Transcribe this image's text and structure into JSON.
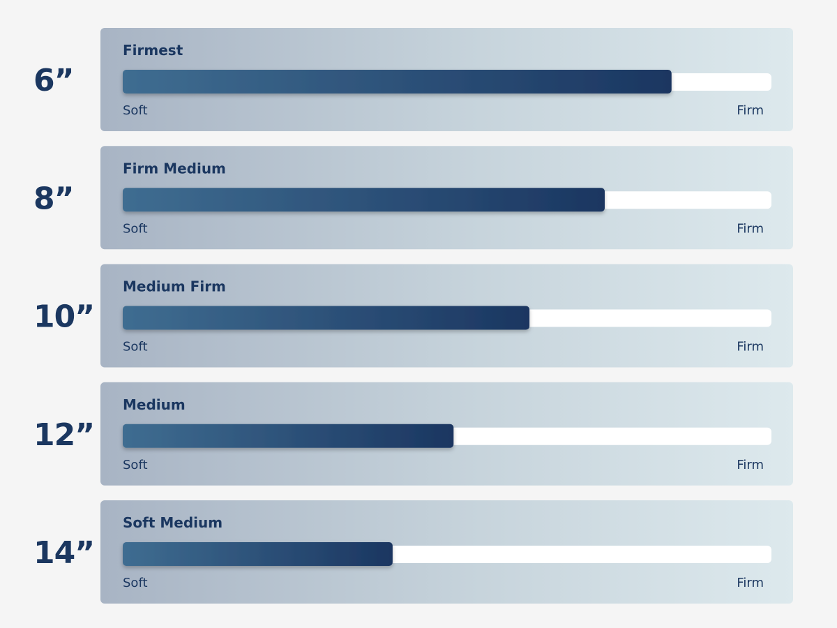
{
  "chart_data": {
    "type": "firmness-bar",
    "categories": [
      "6”",
      "8”",
      "10”",
      "12”",
      "14”"
    ],
    "levels": [
      "Firmest",
      "Firm Medium",
      "Medium Firm",
      "Medium",
      "Soft Medium"
    ],
    "values": [
      84.6,
      74.3,
      62.7,
      51,
      41.6
    ],
    "xlim": [
      0,
      100
    ],
    "scale_labels": [
      "Soft",
      "Firm"
    ],
    "color": "#1b3760"
  }
}
